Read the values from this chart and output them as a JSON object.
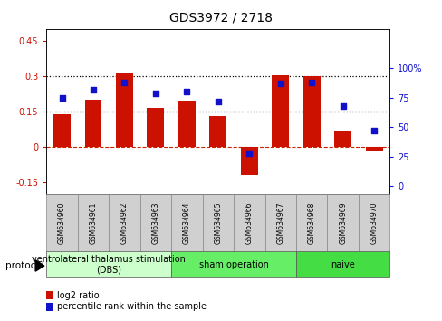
{
  "title": "GDS3972 / 2718",
  "samples": [
    "GSM634960",
    "GSM634961",
    "GSM634962",
    "GSM634963",
    "GSM634964",
    "GSM634965",
    "GSM634966",
    "GSM634967",
    "GSM634968",
    "GSM634969",
    "GSM634970"
  ],
  "log2_ratio": [
    0.14,
    0.2,
    0.315,
    0.165,
    0.195,
    0.13,
    -0.12,
    0.305,
    0.3,
    0.07,
    -0.018
  ],
  "percentile_rank": [
    75,
    82,
    88,
    79,
    80,
    72,
    28,
    87,
    88,
    68,
    47
  ],
  "bar_color": "#cc1100",
  "point_color": "#1111cc",
  "ylim_left": [
    -0.2,
    0.5
  ],
  "ylim_right": [
    -6.67,
    133.33
  ],
  "yticks_left": [
    -0.15,
    0.0,
    0.15,
    0.3,
    0.45
  ],
  "yticks_right": [
    0,
    25,
    50,
    75,
    100
  ],
  "hlines": [
    0.15,
    0.3
  ],
  "zero_line_color": "#cc2200",
  "hline_color": "black",
  "bg_color": "white",
  "plot_bg": "white",
  "protocol_groups": [
    {
      "label": "ventrolateral thalamus stimulation\n(DBS)",
      "start": 0,
      "end": 3,
      "color": "#ccffcc"
    },
    {
      "label": "sham operation",
      "start": 4,
      "end": 7,
      "color": "#66ee66"
    },
    {
      "label": "naive",
      "start": 8,
      "end": 10,
      "color": "#44dd44"
    }
  ],
  "protocol_label": "protocol",
  "legend_bar_label": "log2 ratio",
  "legend_point_label": "percentile rank within the sample",
  "title_fontsize": 10,
  "tick_fontsize": 7,
  "sample_fontsize": 5.5,
  "proto_fontsize": 7
}
